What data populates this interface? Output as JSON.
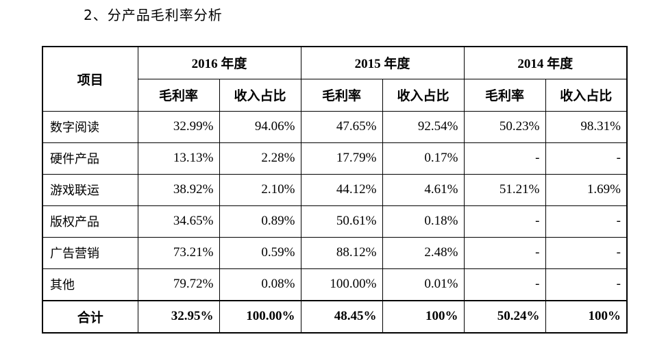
{
  "heading": "2、分产品毛利率分析",
  "table": {
    "corner": "项目",
    "years": [
      "2016 年度",
      "2015 年度",
      "2014 年度"
    ],
    "sub": [
      "毛利率",
      "收入占比"
    ],
    "rows": [
      {
        "label": "数字阅读",
        "vals": [
          "32.99%",
          "94.06%",
          "47.65%",
          "92.54%",
          "50.23%",
          "98.31%"
        ]
      },
      {
        "label": "硬件产品",
        "vals": [
          "13.13%",
          "2.28%",
          "17.79%",
          "0.17%",
          "-",
          "-"
        ]
      },
      {
        "label": "游戏联运",
        "vals": [
          "38.92%",
          "2.10%",
          "44.12%",
          "4.61%",
          "51.21%",
          "1.69%"
        ]
      },
      {
        "label": "版权产品",
        "vals": [
          "34.65%",
          "0.89%",
          "50.61%",
          "0.18%",
          "-",
          "-"
        ]
      },
      {
        "label": "广告营销",
        "vals": [
          "73.21%",
          "0.59%",
          "88.12%",
          "2.48%",
          "-",
          "-"
        ]
      },
      {
        "label": "其他",
        "vals": [
          "79.72%",
          "0.08%",
          "100.00%",
          "0.01%",
          "-",
          "-"
        ]
      }
    ],
    "total": {
      "label": "合计",
      "vals": [
        "32.95%",
        "100.00%",
        "48.45%",
        "100%",
        "50.24%",
        "100%"
      ]
    }
  }
}
